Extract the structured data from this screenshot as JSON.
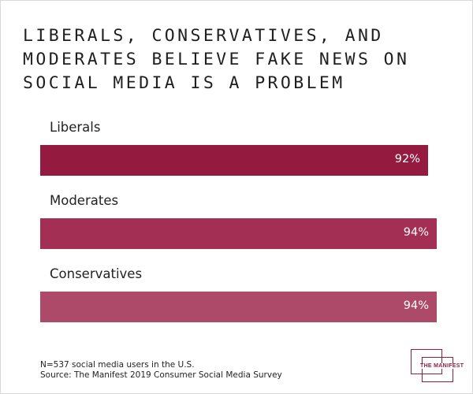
{
  "chart_data": {
    "type": "bar",
    "orientation": "horizontal",
    "title": "LIBERALS, CONSERVATIVES, AND MODERATES BELIEVE FAKE NEWS ON SOCIAL MEDIA IS A PROBLEM",
    "categories": [
      "Liberals",
      "Moderates",
      "Conservatives"
    ],
    "values": [
      92,
      94,
      94
    ],
    "value_labels": [
      "92%",
      "94%",
      "94%"
    ],
    "unit": "%",
    "xlim": [
      0,
      100
    ],
    "grid": false,
    "legend": "none",
    "colors": [
      "#941a40",
      "#a33054",
      "#ad4a69"
    ]
  },
  "footnotes": {
    "sample": "N=537 social media users in the U.S.",
    "source": "Source: The Manifest 2019 Consumer Social Media Survey"
  },
  "logo": {
    "text": "THE MANIFEST",
    "color": "#8f1d3f"
  }
}
